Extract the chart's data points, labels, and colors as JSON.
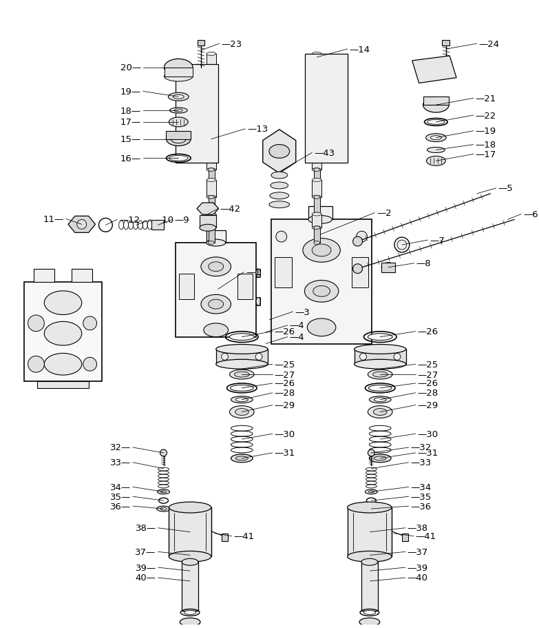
{
  "bg_color": "#ffffff",
  "line_color": "#000000",
  "fig_width": 7.83,
  "fig_height": 9.12,
  "dpi": 100
}
